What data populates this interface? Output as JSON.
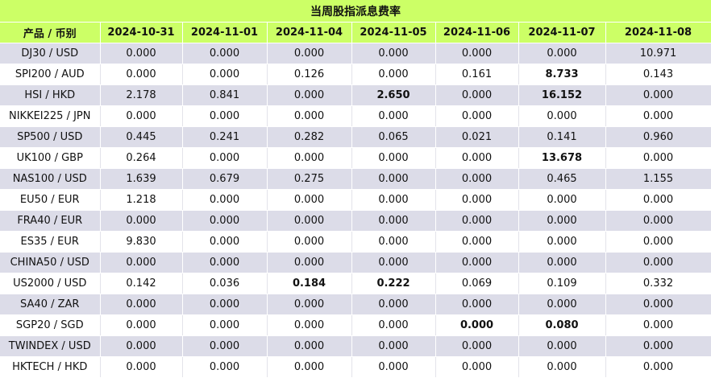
{
  "title": "当周股指派息费率",
  "columns": [
    "产品 / 币别",
    "2024-10-31",
    "2024-11-01",
    "2024-11-04",
    "2024-11-05",
    "2024-11-06",
    "2024-11-07",
    "2024-11-08"
  ],
  "rows": [
    {
      "product": "DJ30 / USD",
      "values": [
        "0.000",
        "0.000",
        "0.000",
        "0.000",
        "0.000",
        "0.000",
        "10.971"
      ],
      "bold": []
    },
    {
      "product": "SPI200 / AUD",
      "values": [
        "0.000",
        "0.000",
        "0.126",
        "0.000",
        "0.161",
        "8.733",
        "0.143"
      ],
      "bold": [
        5
      ]
    },
    {
      "product": "HSI / HKD",
      "values": [
        "2.178",
        "0.841",
        "0.000",
        "2.650",
        "0.000",
        "16.152",
        "0.000"
      ],
      "bold": [
        3,
        5
      ]
    },
    {
      "product": "NIKKEI225 / JPN",
      "values": [
        "0.000",
        "0.000",
        "0.000",
        "0.000",
        "0.000",
        "0.000",
        "0.000"
      ],
      "bold": []
    },
    {
      "product": "SP500 / USD",
      "values": [
        "0.445",
        "0.241",
        "0.282",
        "0.065",
        "0.021",
        "0.141",
        "0.960"
      ],
      "bold": []
    },
    {
      "product": "UK100 / GBP",
      "values": [
        "0.264",
        "0.000",
        "0.000",
        "0.000",
        "0.000",
        "13.678",
        "0.000"
      ],
      "bold": [
        5
      ]
    },
    {
      "product": "NAS100 / USD",
      "values": [
        "1.639",
        "0.679",
        "0.275",
        "0.000",
        "0.000",
        "0.465",
        "1.155"
      ],
      "bold": []
    },
    {
      "product": "EU50 / EUR",
      "values": [
        "1.218",
        "0.000",
        "0.000",
        "0.000",
        "0.000",
        "0.000",
        "0.000"
      ],
      "bold": []
    },
    {
      "product": "FRA40 / EUR",
      "values": [
        "0.000",
        "0.000",
        "0.000",
        "0.000",
        "0.000",
        "0.000",
        "0.000"
      ],
      "bold": []
    },
    {
      "product": "ES35 / EUR",
      "values": [
        "9.830",
        "0.000",
        "0.000",
        "0.000",
        "0.000",
        "0.000",
        "0.000"
      ],
      "bold": []
    },
    {
      "product": "CHINA50 / USD",
      "values": [
        "0.000",
        "0.000",
        "0.000",
        "0.000",
        "0.000",
        "0.000",
        "0.000"
      ],
      "bold": []
    },
    {
      "product": "US2000 / USD",
      "values": [
        "0.142",
        "0.036",
        "0.184",
        "0.222",
        "0.069",
        "0.109",
        "0.332"
      ],
      "bold": [
        2,
        3
      ]
    },
    {
      "product": "SA40 / ZAR",
      "values": [
        "0.000",
        "0.000",
        "0.000",
        "0.000",
        "0.000",
        "0.000",
        "0.000"
      ],
      "bold": []
    },
    {
      "product": "SGP20 / SGD",
      "values": [
        "0.000",
        "0.000",
        "0.000",
        "0.000",
        "0.000",
        "0.080",
        "0.000"
      ],
      "bold": [
        4,
        5
      ]
    },
    {
      "product": "TWINDEX / USD",
      "values": [
        "0.000",
        "0.000",
        "0.000",
        "0.000",
        "0.000",
        "0.000",
        "0.000"
      ],
      "bold": []
    },
    {
      "product": "HKTECH / HKD",
      "values": [
        "0.000",
        "0.000",
        "0.000",
        "0.000",
        "0.000",
        "0.000",
        "0.000"
      ],
      "bold": []
    }
  ]
}
